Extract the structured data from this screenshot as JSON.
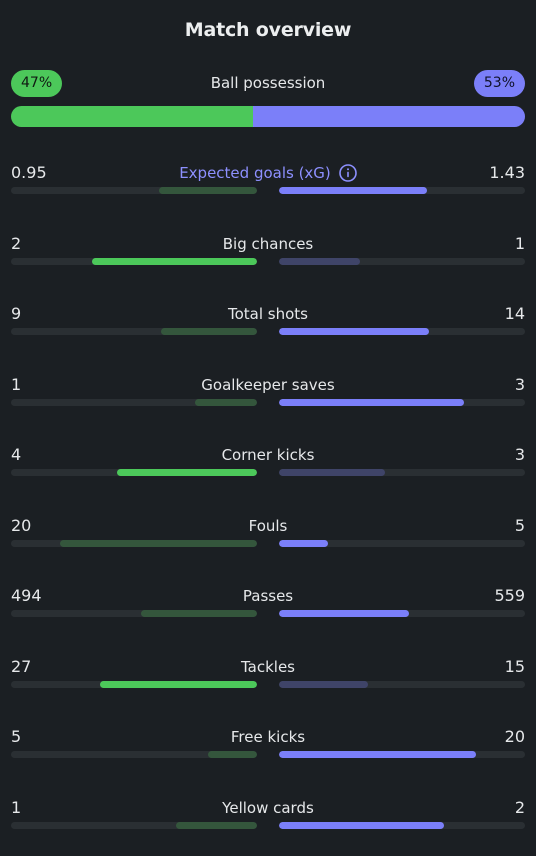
{
  "title": "Match overview",
  "possession": {
    "label": "Ball possession",
    "home_text": "47%",
    "away_text": "53%",
    "home_fraction": 0.47
  },
  "colors": {
    "home": "#4cc85a",
    "away": "#7b7ff9",
    "background": "#1b1f23"
  },
  "stats": [
    {
      "label": "Expected goals (xG)",
      "home": "0.95",
      "away": "1.43",
      "home_fraction": 0.4,
      "away_fraction": 0.6,
      "winner": "away",
      "icon": "info-icon",
      "accent": true
    },
    {
      "label": "Big chances",
      "home": "2",
      "away": "1",
      "home_fraction": 0.67,
      "away_fraction": 0.33,
      "winner": "home"
    },
    {
      "label": "Total shots",
      "home": "9",
      "away": "14",
      "home_fraction": 0.39,
      "away_fraction": 0.61,
      "winner": "away"
    },
    {
      "label": "Goalkeeper saves",
      "home": "1",
      "away": "3",
      "home_fraction": 0.25,
      "away_fraction": 0.75,
      "winner": "away"
    },
    {
      "label": "Corner kicks",
      "home": "4",
      "away": "3",
      "home_fraction": 0.57,
      "away_fraction": 0.43,
      "winner": "home"
    },
    {
      "label": "Fouls",
      "home": "20",
      "away": "5",
      "home_fraction": 0.8,
      "away_fraction": 0.2,
      "winner": "away"
    },
    {
      "label": "Passes",
      "home": "494",
      "away": "559",
      "home_fraction": 0.47,
      "away_fraction": 0.53,
      "winner": "away"
    },
    {
      "label": "Tackles",
      "home": "27",
      "away": "15",
      "home_fraction": 0.64,
      "away_fraction": 0.36,
      "winner": "home"
    },
    {
      "label": "Free kicks",
      "home": "5",
      "away": "20",
      "home_fraction": 0.2,
      "away_fraction": 0.8,
      "winner": "away"
    },
    {
      "label": "Yellow cards",
      "home": "1",
      "away": "2",
      "home_fraction": 0.33,
      "away_fraction": 0.67,
      "winner": "away"
    }
  ]
}
